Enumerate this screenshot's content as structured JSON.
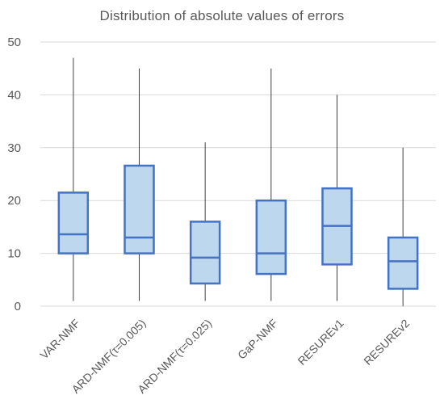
{
  "chart_data": {
    "type": "box",
    "title": "Distribution of absolute values of errors",
    "xlabel": "",
    "ylabel": "",
    "ylim": [
      0,
      50
    ],
    "yticks": [
      0,
      10,
      20,
      30,
      40,
      50
    ],
    "grid": true,
    "categories": [
      "VAR-NMF",
      "ARD-NMF(τ=0.005)",
      "ARD-NMF(τ=0.025)",
      "GaP-NMF",
      "RESUREv1",
      "RESUREv2"
    ],
    "series": [
      {
        "category": "VAR-NMF",
        "min": 1,
        "q1": 10,
        "median": 13.6,
        "q3": 21.5,
        "max": 47
      },
      {
        "category": "ARD-NMF(τ=0.005)",
        "min": 1,
        "q1": 10,
        "median": 13,
        "q3": 26.6,
        "max": 45
      },
      {
        "category": "ARD-NMF(τ=0.025)",
        "min": 1,
        "q1": 4.3,
        "median": 9.2,
        "q3": 16,
        "max": 31
      },
      {
        "category": "GaP-NMF",
        "min": 1,
        "q1": 6.1,
        "median": 10,
        "q3": 20,
        "max": 45
      },
      {
        "category": "RESUREv1",
        "min": 1,
        "q1": 7.9,
        "median": 15.2,
        "q3": 22.3,
        "max": 40
      },
      {
        "category": "RESUREv2",
        "min": 0,
        "q1": 3.3,
        "median": 8.5,
        "q3": 13,
        "max": 30
      }
    ],
    "colors": {
      "box_fill": "#bdd7ee",
      "box_stroke": "#4472c4",
      "whisker": "#404040",
      "grid": "#d9d9d9",
      "text": "#595959"
    }
  }
}
